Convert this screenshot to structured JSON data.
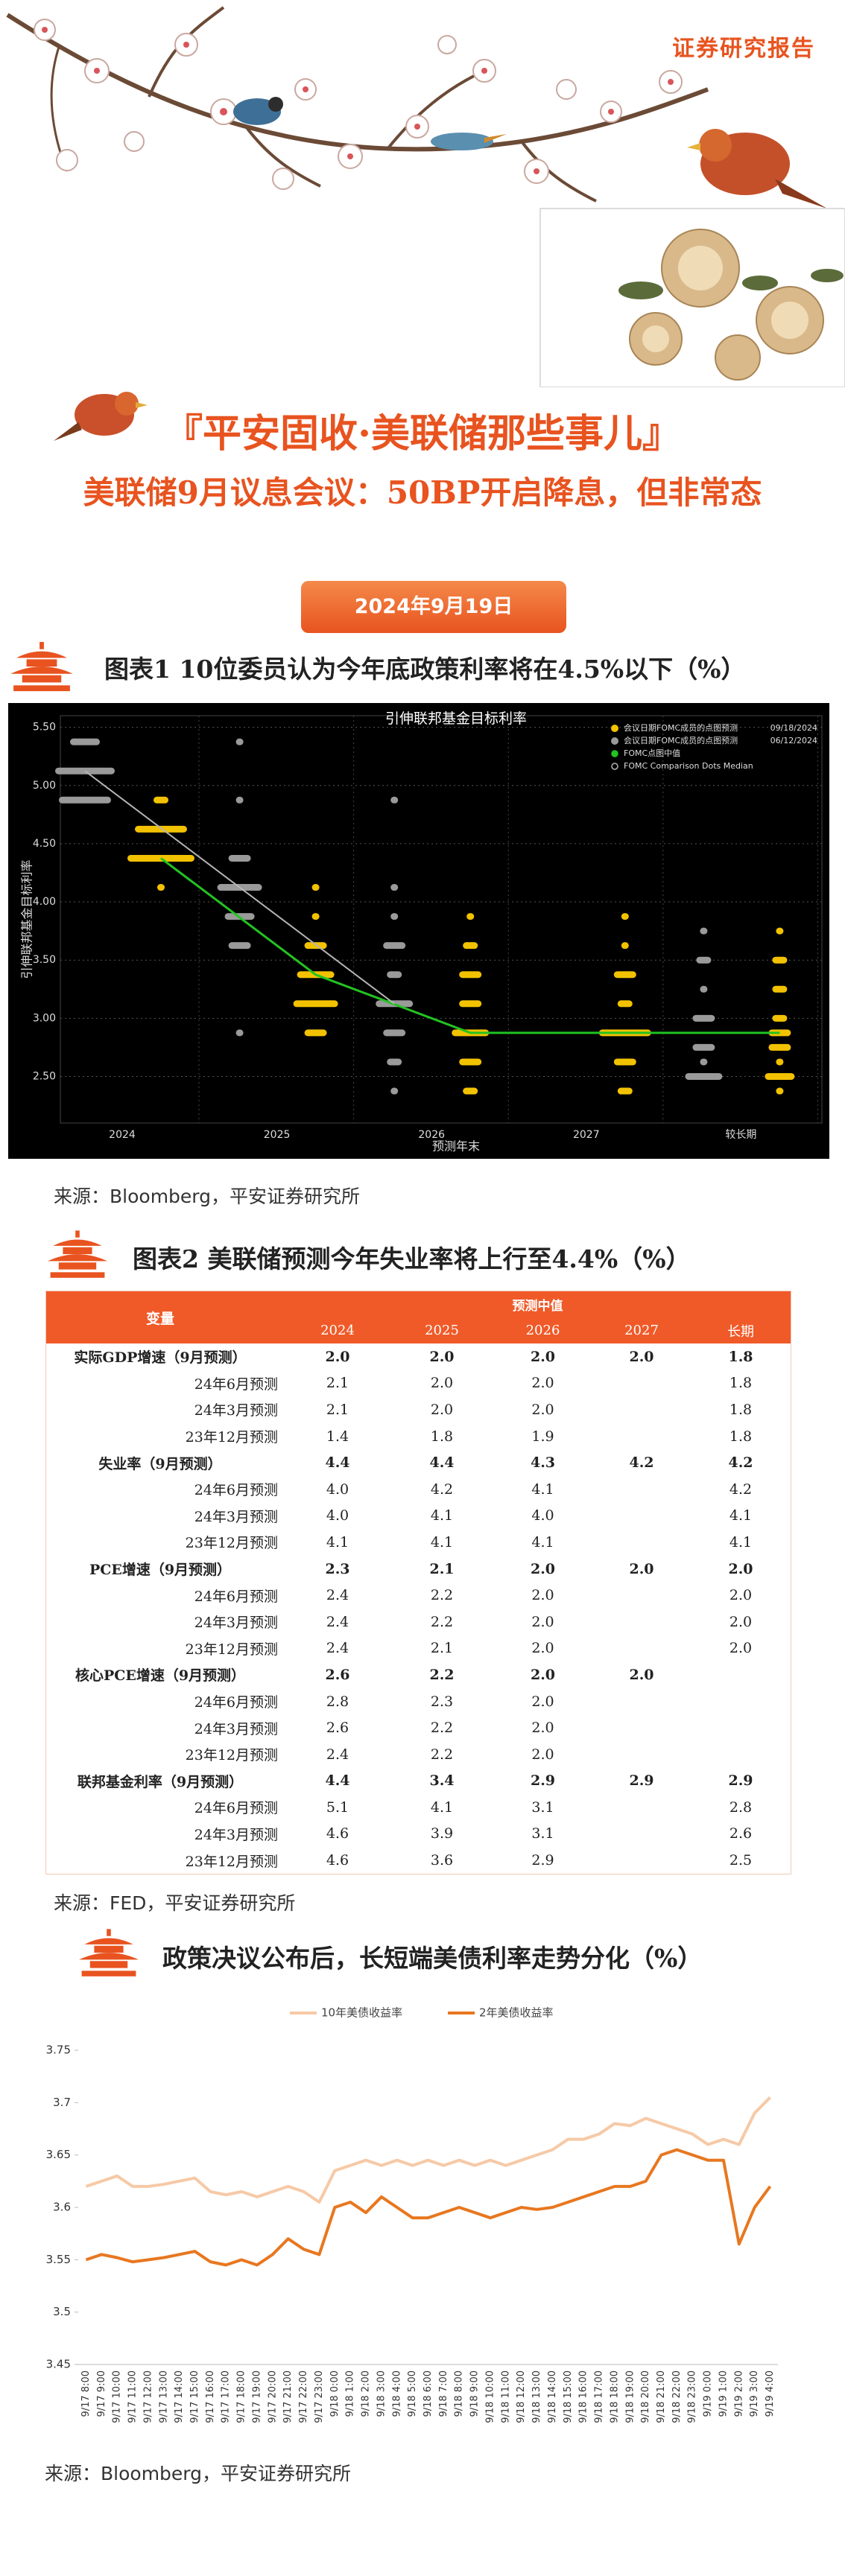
{
  "header": {
    "report_label": "证券研究报告",
    "title": "『平安固收·美联储那些事儿』",
    "subtitle": "美联储9月议息会议：50BP开启降息，但非常态",
    "date": "2024年9月19日"
  },
  "sections": [
    {
      "heading": "图表1  10位委员认为今年底政策利率将在4.5%以下（%）",
      "source": "来源：Bloomberg，平安证券研究所"
    },
    {
      "heading": "图表2  美联储预测今年失业率将上行至4.4%（%）",
      "source": "来源：FED，平安证券研究所"
    },
    {
      "heading": "政策决议公布后，长短端美债利率走势分化（%）",
      "source": "来源：Bloomberg，平安证券研究所"
    }
  ],
  "chart_data": [
    {
      "type": "dot_plot",
      "title": "引伸联邦基金目标利率",
      "y_label": "引伸联邦基金目标利率",
      "x_label": "预测年末",
      "categories": [
        "2024",
        "2025",
        "2026",
        "2027",
        "较长期"
      ],
      "ylim": [
        2.1,
        5.6
      ],
      "yticks": [
        {
          "value": 2.5,
          "label": "2.50"
        },
        {
          "value": 3.0,
          "label": "3.00"
        },
        {
          "value": 3.5,
          "label": "3.50"
        },
        {
          "value": 4.0,
          "label": "4.00"
        },
        {
          "value": 4.5,
          "label": "4.50"
        },
        {
          "value": 5.0,
          "label": "5.00"
        },
        {
          "value": 5.5,
          "label": "5.50"
        }
      ],
      "grid": true,
      "series": [
        {
          "name": "会议日期FOMC成员的点图预测",
          "date": "09/18/2024",
          "kind": "dots",
          "color": "#f2c200",
          "values": [
            [
              {
                "rate": 4.875,
                "count": 2
              },
              {
                "rate": 4.625,
                "count": 7
              },
              {
                "rate": 4.375,
                "count": 9
              },
              {
                "rate": 4.125,
                "count": 1
              }
            ],
            [
              {
                "rate": 4.125,
                "count": 1
              },
              {
                "rate": 3.875,
                "count": 1
              },
              {
                "rate": 3.625,
                "count": 3
              },
              {
                "rate": 3.375,
                "count": 5
              },
              {
                "rate": 3.125,
                "count": 6
              },
              {
                "rate": 2.875,
                "count": 3
              }
            ],
            [
              {
                "rate": 3.875,
                "count": 1
              },
              {
                "rate": 3.625,
                "count": 2
              },
              {
                "rate": 3.375,
                "count": 3
              },
              {
                "rate": 3.125,
                "count": 3
              },
              {
                "rate": 2.875,
                "count": 5
              },
              {
                "rate": 2.625,
                "count": 3
              },
              {
                "rate": 2.375,
                "count": 2
              }
            ],
            [
              {
                "rate": 3.875,
                "count": 1
              },
              {
                "rate": 3.625,
                "count": 1
              },
              {
                "rate": 3.375,
                "count": 3
              },
              {
                "rate": 3.125,
                "count": 2
              },
              {
                "rate": 2.875,
                "count": 7
              },
              {
                "rate": 2.625,
                "count": 3
              },
              {
                "rate": 2.375,
                "count": 2
              }
            ],
            [
              {
                "rate": 3.75,
                "count": 1
              },
              {
                "rate": 3.5,
                "count": 2
              },
              {
                "rate": 3.25,
                "count": 2
              },
              {
                "rate": 3.0,
                "count": 2
              },
              {
                "rate": 2.875,
                "count": 3
              },
              {
                "rate": 2.75,
                "count": 3
              },
              {
                "rate": 2.625,
                "count": 1
              },
              {
                "rate": 2.5,
                "count": 4
              },
              {
                "rate": 2.375,
                "count": 1
              }
            ]
          ]
        },
        {
          "name": "会议日期FOMC成员的点图预测",
          "date": "06/12/2024",
          "kind": "dots",
          "color": "#9a9a9a",
          "values": [
            [
              {
                "rate": 5.375,
                "count": 4
              },
              {
                "rate": 5.125,
                "count": 8
              },
              {
                "rate": 4.875,
                "count": 7
              }
            ],
            [
              {
                "rate": 5.375,
                "count": 1
              },
              {
                "rate": 4.875,
                "count": 1
              },
              {
                "rate": 4.375,
                "count": 3
              },
              {
                "rate": 4.125,
                "count": 6
              },
              {
                "rate": 3.875,
                "count": 4
              },
              {
                "rate": 3.625,
                "count": 3
              },
              {
                "rate": 2.875,
                "count": 1
              }
            ],
            [
              {
                "rate": 4.875,
                "count": 1
              },
              {
                "rate": 4.125,
                "count": 1
              },
              {
                "rate": 3.875,
                "count": 1
              },
              {
                "rate": 3.625,
                "count": 3
              },
              {
                "rate": 3.375,
                "count": 2
              },
              {
                "rate": 3.125,
                "count": 5
              },
              {
                "rate": 2.875,
                "count": 3
              },
              {
                "rate": 2.625,
                "count": 2
              },
              {
                "rate": 2.375,
                "count": 1
              }
            ],
            [],
            [
              {
                "rate": 3.75,
                "count": 1
              },
              {
                "rate": 3.5,
                "count": 2
              },
              {
                "rate": 3.25,
                "count": 1
              },
              {
                "rate": 3.0,
                "count": 3
              },
              {
                "rate": 2.75,
                "count": 3
              },
              {
                "rate": 2.625,
                "count": 1
              },
              {
                "rate": 2.5,
                "count": 5
              }
            ]
          ]
        },
        {
          "name": "FOMC点图中值",
          "kind": "line",
          "color": "#22c322",
          "values": [
            4.375,
            3.375,
            2.875,
            2.875,
            2.875
          ]
        },
        {
          "name": "FOMC Comparison Dots Median",
          "kind": "line",
          "color": "#b5b5b5",
          "values": [
            5.125,
            4.125,
            3.125,
            null,
            2.75
          ]
        }
      ]
    },
    {
      "type": "line",
      "categories": [
        "9/17 8:00",
        "9/17 9:00",
        "9/17 10:00",
        "9/17 11:00",
        "9/17 12:00",
        "9/17 13:00",
        "9/17 14:00",
        "9/17 15:00",
        "9/17 16:00",
        "9/17 17:00",
        "9/17 18:00",
        "9/17 19:00",
        "9/17 20:00",
        "9/17 21:00",
        "9/17 22:00",
        "9/17 23:00",
        "9/18 0:00",
        "9/18 1:00",
        "9/18 2:00",
        "9/18 3:00",
        "9/18 4:00",
        "9/18 5:00",
        "9/18 6:00",
        "9/18 7:00",
        "9/18 8:00",
        "9/18 9:00",
        "9/18 10:00",
        "9/18 11:00",
        "9/18 12:00",
        "9/18 13:00",
        "9/18 14:00",
        "9/18 15:00",
        "9/18 16:00",
        "9/18 17:00",
        "9/18 18:00",
        "9/18 19:00",
        "9/18 20:00",
        "9/18 21:00",
        "9/18 22:00",
        "9/18 23:00",
        "9/19 0:00",
        "9/19 1:00",
        "9/19 2:00",
        "9/19 3:00",
        "9/19 4:00"
      ],
      "ylim": [
        3.45,
        3.75
      ],
      "yticks": [
        3.45,
        3.5,
        3.55,
        3.6,
        3.65,
        3.7,
        3.75
      ],
      "grid": false,
      "series": [
        {
          "name": "10年美债收益率",
          "color": "#f6c9a6",
          "values": [
            3.62,
            3.625,
            3.63,
            3.62,
            3.62,
            3.622,
            3.625,
            3.628,
            3.615,
            3.612,
            3.615,
            3.61,
            3.615,
            3.62,
            3.615,
            3.605,
            3.635,
            3.64,
            3.645,
            3.64,
            3.645,
            3.64,
            3.645,
            3.64,
            3.645,
            3.64,
            3.645,
            3.64,
            3.645,
            3.65,
            3.655,
            3.665,
            3.665,
            3.67,
            3.68,
            3.678,
            3.685,
            3.68,
            3.675,
            3.67,
            3.66,
            3.665,
            3.66,
            3.69,
            3.705
          ]
        },
        {
          "name": "2年美债收益率",
          "color": "#e8771f",
          "values": [
            3.55,
            3.555,
            3.552,
            3.548,
            3.55,
            3.552,
            3.555,
            3.558,
            3.548,
            3.545,
            3.55,
            3.545,
            3.555,
            3.57,
            3.56,
            3.555,
            3.6,
            3.605,
            3.595,
            3.61,
            3.6,
            3.59,
            3.59,
            3.595,
            3.6,
            3.595,
            3.59,
            3.595,
            3.6,
            3.598,
            3.6,
            3.605,
            3.61,
            3.615,
            3.62,
            3.62,
            3.625,
            3.65,
            3.655,
            3.65,
            3.645,
            3.645,
            3.565,
            3.6,
            3.62
          ]
        }
      ]
    }
  ],
  "table": {
    "header": {
      "variable": "变量",
      "group": "预测中值",
      "columns": [
        "2024",
        "2025",
        "2026",
        "2027",
        "长期"
      ]
    },
    "groups": [
      {
        "label": "实际GDP增速（9月预测）",
        "cells": [
          "2.0",
          "2.0",
          "2.0",
          "2.0",
          "1.8"
        ],
        "previous": [
          {
            "label": "24年6月预测",
            "cells": [
              "2.1",
              "2.0",
              "2.0",
              null,
              "1.8"
            ]
          },
          {
            "label": "24年3月预测",
            "cells": [
              "2.1",
              "2.0",
              "2.0",
              null,
              "1.8"
            ]
          },
          {
            "label": "23年12月预测",
            "cells": [
              "1.4",
              "1.8",
              "1.9",
              null,
              "1.8"
            ]
          }
        ]
      },
      {
        "label": "失业率（9月预测）",
        "cells": [
          "4.4",
          "4.4",
          "4.3",
          "4.2",
          "4.2"
        ],
        "previous": [
          {
            "label": "24年6月预测",
            "cells": [
              "4.0",
              "4.2",
              "4.1",
              null,
              "4.2"
            ]
          },
          {
            "label": "24年3月预测",
            "cells": [
              "4.0",
              "4.1",
              "4.0",
              null,
              "4.1"
            ]
          },
          {
            "label": "23年12月预测",
            "cells": [
              "4.1",
              "4.1",
              "4.1",
              null,
              "4.1"
            ]
          }
        ]
      },
      {
        "label": "PCE增速（9月预测）",
        "cells": [
          "2.3",
          "2.1",
          "2.0",
          "2.0",
          "2.0"
        ],
        "previous": [
          {
            "label": "24年6月预测",
            "cells": [
              "2.4",
              "2.2",
              "2.0",
              null,
              "2.0"
            ]
          },
          {
            "label": "24年3月预测",
            "cells": [
              "2.4",
              "2.2",
              "2.0",
              null,
              "2.0"
            ]
          },
          {
            "label": "23年12月预测",
            "cells": [
              "2.4",
              "2.1",
              "2.0",
              null,
              "2.0"
            ]
          }
        ]
      },
      {
        "label": "核心PCE增速（9月预测）",
        "cells": [
          "2.6",
          "2.2",
          "2.0",
          "2.0",
          null
        ],
        "previous": [
          {
            "label": "24年6月预测",
            "cells": [
              "2.8",
              "2.3",
              "2.0",
              null,
              null
            ]
          },
          {
            "label": "24年3月预测",
            "cells": [
              "2.6",
              "2.2",
              "2.0",
              null,
              null
            ]
          },
          {
            "label": "23年12月预测",
            "cells": [
              "2.4",
              "2.2",
              "2.0",
              null,
              null
            ]
          }
        ]
      },
      {
        "label": "联邦基金利率（9月预测）",
        "cells": [
          "4.4",
          "3.4",
          "2.9",
          "2.9",
          "2.9"
        ],
        "previous": [
          {
            "label": "24年6月预测",
            "cells": [
              "5.1",
              "4.1",
              "3.1",
              null,
              "2.8"
            ]
          },
          {
            "label": "24年3月预测",
            "cells": [
              "4.6",
              "3.9",
              "3.1",
              null,
              "2.6"
            ]
          },
          {
            "label": "23年12月预测",
            "cells": [
              "4.6",
              "3.6",
              "2.9",
              null,
              "2.5"
            ]
          }
        ]
      }
    ]
  }
}
